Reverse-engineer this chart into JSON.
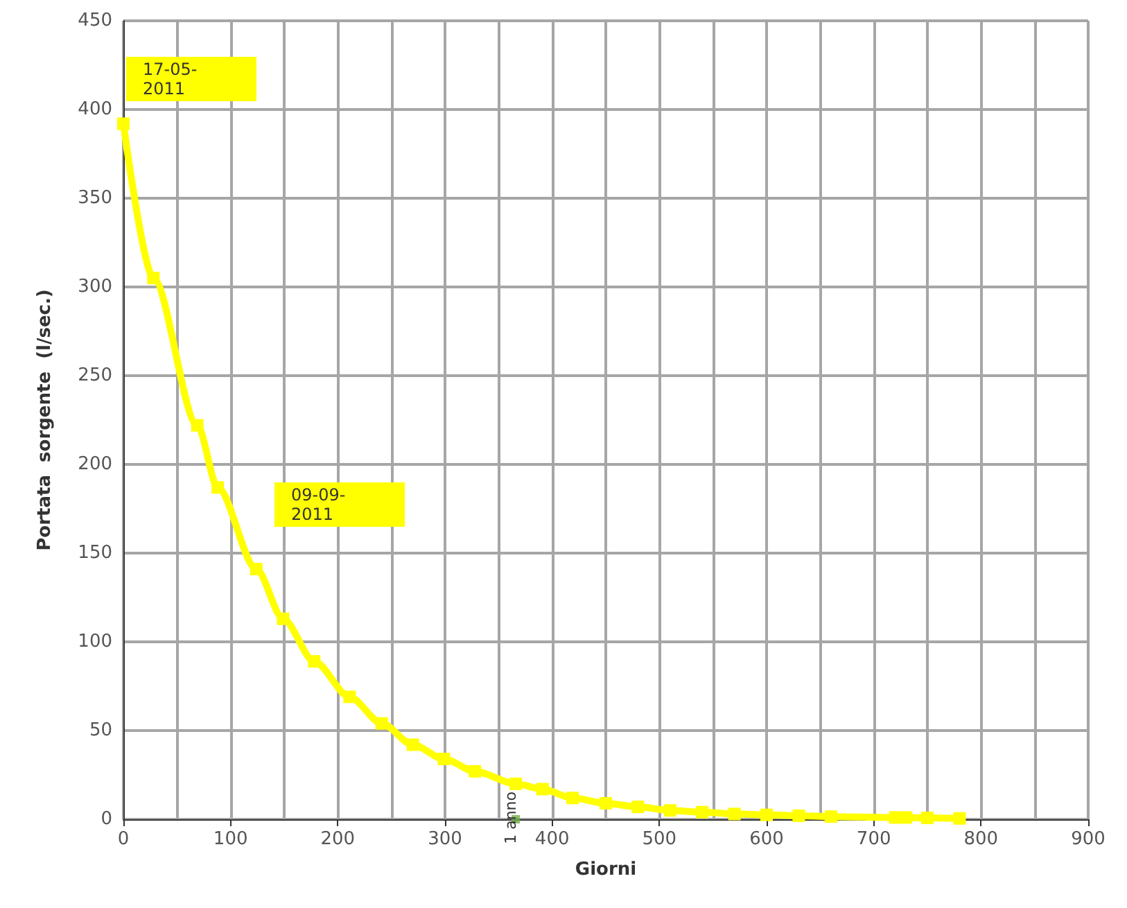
{
  "chart_data": {
    "type": "line",
    "xlabel": "Giorni",
    "ylabel": "Portata  sorgente  (l/sec.)",
    "x": [
      0,
      28,
      69,
      88,
      124,
      149,
      178,
      211,
      241,
      270,
      299,
      328,
      366,
      391,
      419,
      450,
      480,
      510,
      540,
      570,
      600,
      630,
      660,
      720,
      730,
      750,
      780
    ],
    "series": [
      {
        "color": "#ffff00",
        "values": [
          392,
          305,
          222,
          187,
          141,
          113,
          89,
          69,
          54,
          42,
          34,
          27,
          20,
          17,
          12,
          9,
          7,
          5,
          4,
          3,
          2.5,
          2,
          1.5,
          1,
          1,
          0.8,
          0.5
        ]
      },
      {
        "type": "scatter",
        "color": "#70ad47",
        "x": [
          366
        ],
        "values": [
          0
        ]
      }
    ],
    "xlim": [
      0,
      900
    ],
    "xticks": [
      0,
      100,
      200,
      300,
      400,
      500,
      600,
      700,
      800,
      900
    ],
    "ylim": [
      0,
      450
    ],
    "yticks": [
      0,
      50,
      100,
      150,
      200,
      250,
      300,
      350,
      400,
      450
    ],
    "grid": true,
    "marker": "square",
    "annotations": [
      "17-05-2011",
      "09-09-2011",
      {
        "text": "1 anno",
        "x": 366,
        "y": 0
      }
    ]
  }
}
